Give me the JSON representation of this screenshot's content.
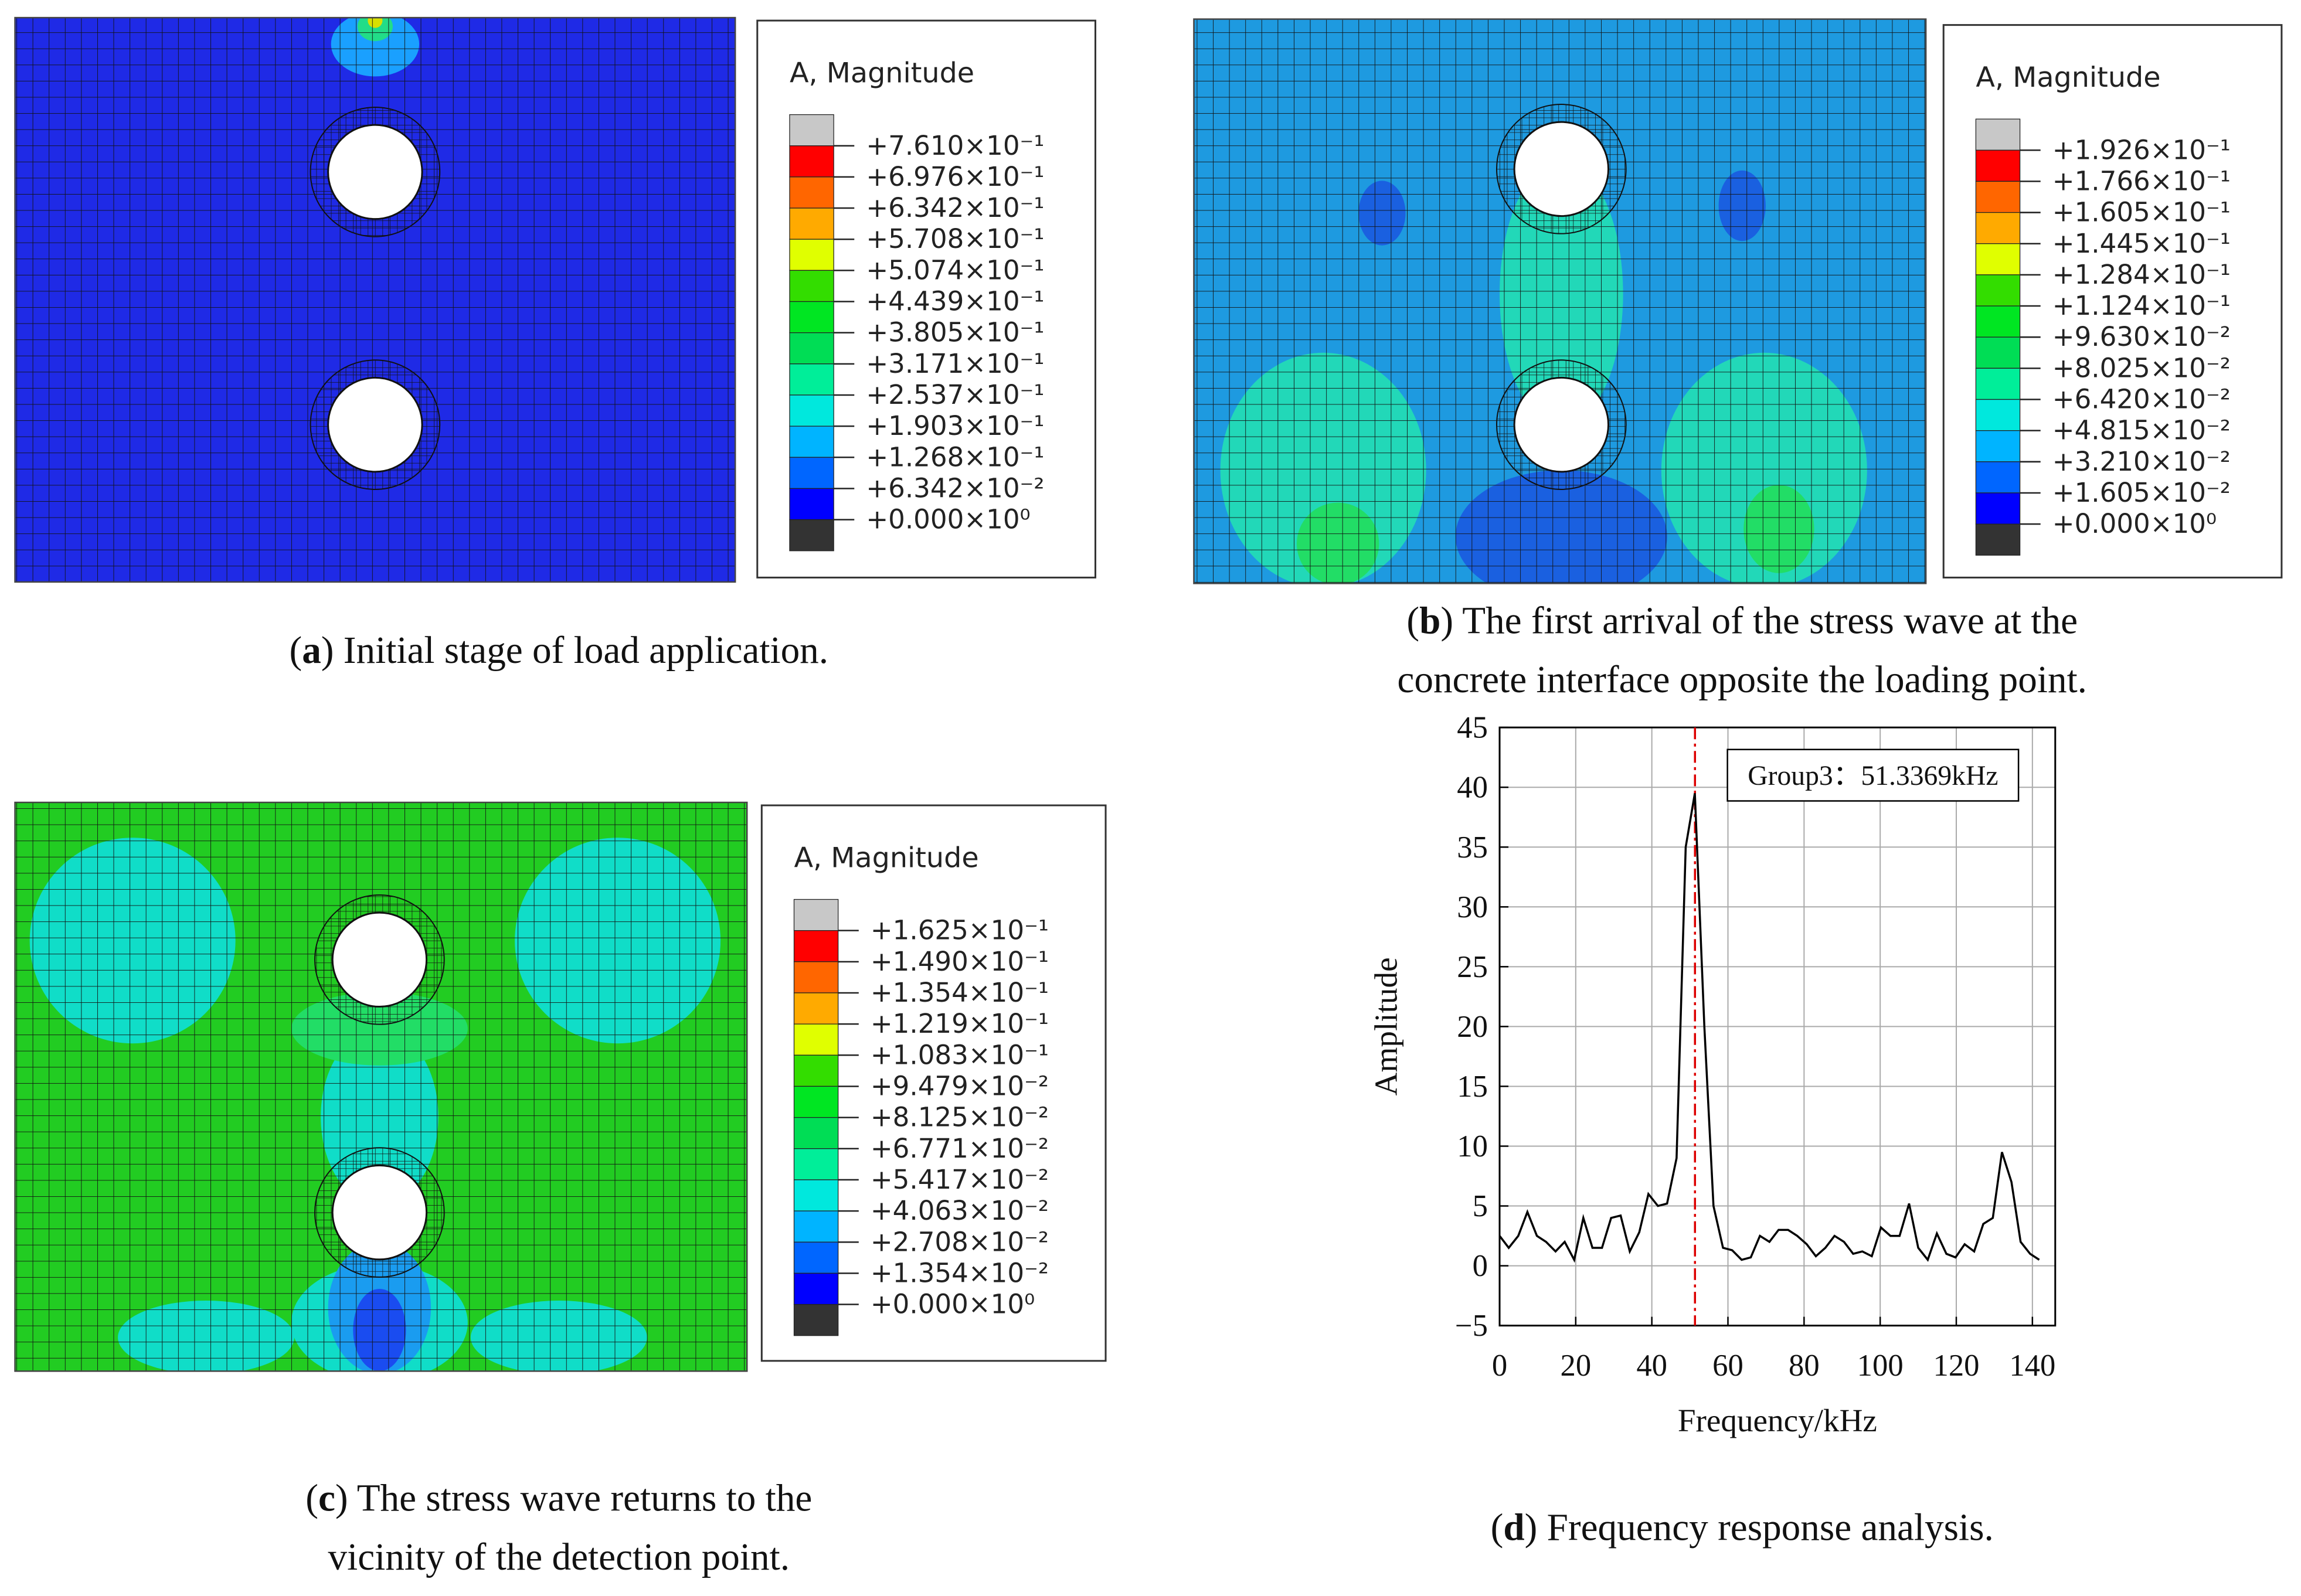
{
  "legend_colors": [
    "#c8c8c8",
    "#ff0000",
    "#ff6600",
    "#ffaa00",
    "#e0ff00",
    "#33dd00",
    "#00e622",
    "#00dd55",
    "#00ee99",
    "#00e8dd",
    "#00b4ff",
    "#0066ff",
    "#0000ff",
    "#333333"
  ],
  "panels": [
    {
      "legend_title": "A, Magnitude",
      "legend_labels": [
        "+7.610×10⁻¹",
        "+6.976×10⁻¹",
        "+6.342×10⁻¹",
        "+5.708×10⁻¹",
        "+5.074×10⁻¹",
        "+4.439×10⁻¹",
        "+3.805×10⁻¹",
        "+3.171×10⁻¹",
        "+2.537×10⁻¹",
        "+1.903×10⁻¹",
        "+1.268×10⁻¹",
        "+6.342×10⁻²",
        "+0.000×10⁰"
      ],
      "caption": [
        [
          "(",
          "a",
          ") Initial stage of load application."
        ]
      ]
    },
    {
      "legend_title": "A, Magnitude",
      "legend_labels": [
        "+1.926×10⁻¹",
        "+1.766×10⁻¹",
        "+1.605×10⁻¹",
        "+1.445×10⁻¹",
        "+1.284×10⁻¹",
        "+1.124×10⁻¹",
        "+9.630×10⁻²",
        "+8.025×10⁻²",
        "+6.420×10⁻²",
        "+4.815×10⁻²",
        "+3.210×10⁻²",
        "+1.605×10⁻²",
        "+0.000×10⁰"
      ],
      "caption": [
        [
          "(",
          "b",
          ") The first arrival of the stress wave at the"
        ],
        [
          "concrete interface opposite the loading point."
        ]
      ]
    },
    {
      "legend_title": "A, Magnitude",
      "legend_labels": [
        "+1.625×10⁻¹",
        "+1.490×10⁻¹",
        "+1.354×10⁻¹",
        "+1.219×10⁻¹",
        "+1.083×10⁻¹",
        "+9.479×10⁻²",
        "+8.125×10⁻²",
        "+6.771×10⁻²",
        "+5.417×10⁻²",
        "+4.063×10⁻²",
        "+2.708×10⁻²",
        "+1.354×10⁻²",
        "+0.000×10⁰"
      ],
      "caption": [
        [
          "(",
          "c",
          ") The stress wave returns to the"
        ],
        [
          "vicinity of the detection point."
        ]
      ]
    },
    {
      "caption": [
        [
          "(",
          "d",
          ") Frequency response analysis."
        ]
      ]
    }
  ],
  "chart_data": {
    "type": "line",
    "xlabel": "Frequency/kHz",
    "ylabel": "Amplitude",
    "x": [
      0,
      2.4,
      4.9,
      7.3,
      9.8,
      12.2,
      14.7,
      17.1,
      19.6,
      22,
      24.4,
      26.9,
      29.3,
      31.8,
      34.2,
      36.7,
      39.1,
      41.6,
      44,
      46.5,
      48.9,
      51.3,
      53.8,
      56.2,
      58.7,
      61.1,
      63.6,
      66,
      68.4,
      70.9,
      73.3,
      75.8,
      78.2,
      80.7,
      83.1,
      85.6,
      88,
      90.5,
      92.9,
      95.3,
      97.8,
      100.2,
      102.7,
      105.1,
      107.6,
      110,
      112.5,
      114.9,
      117.4,
      119.8,
      122.2,
      124.7,
      127.1,
      129.6,
      132,
      134.5,
      136.9,
      139.4,
      141.8
    ],
    "series": [
      {
        "name": "Group3",
        "color": "#000000",
        "values": [
          2.5,
          1.5,
          2.5,
          4.5,
          2.5,
          2,
          1.2,
          2,
          0.5,
          4,
          1.5,
          1.5,
          4,
          4.2,
          1.2,
          2.8,
          6,
          5,
          5.2,
          9,
          35,
          39.5,
          20,
          5,
          1.5,
          1.3,
          0.5,
          0.7,
          2.5,
          2,
          3,
          3,
          2.5,
          1.8,
          0.8,
          1.5,
          2.5,
          2,
          1,
          1.2,
          0.8,
          3.2,
          2.5,
          2.5,
          5.2,
          1.5,
          0.5,
          2.7,
          1,
          0.7,
          1.8,
          1.2,
          3.5,
          4,
          9.5,
          7,
          2,
          1,
          0.5
        ]
      }
    ],
    "marker_x": 51.3369,
    "marker_color": "#dd0000",
    "annotation": "Group3：51.3369kHz",
    "xlim": [
      0,
      146
    ],
    "ylim": [
      -5,
      45
    ],
    "xticks": [
      0,
      20,
      40,
      60,
      80,
      100,
      120,
      140
    ],
    "yticks": [
      {
        "value": -5,
        "label": "−5"
      },
      0,
      5,
      10,
      15,
      20,
      25,
      30,
      35,
      40,
      45
    ],
    "grid": true
  }
}
